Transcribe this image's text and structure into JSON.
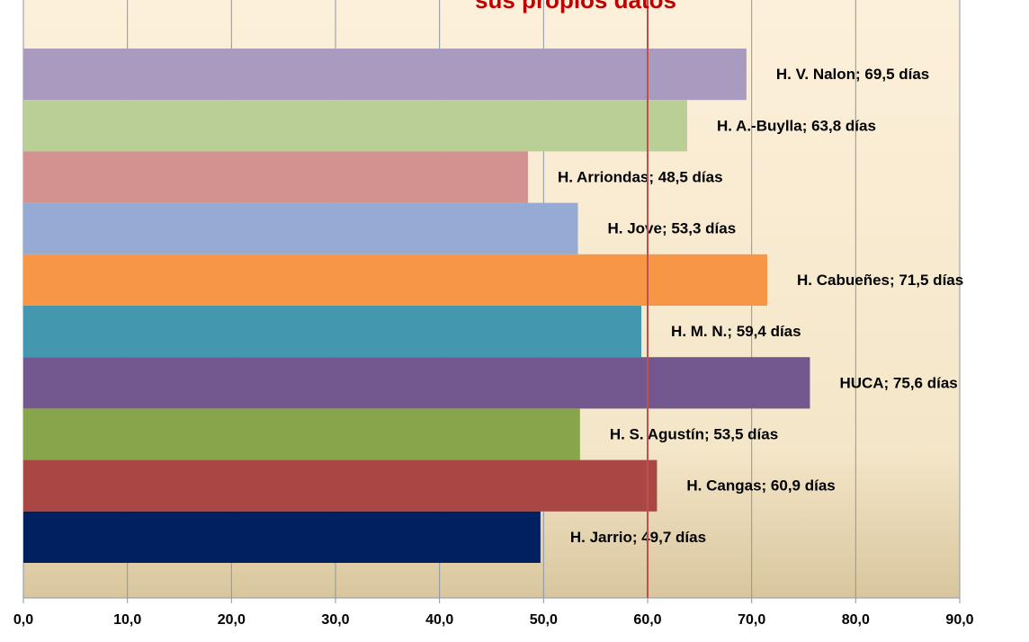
{
  "chart_data": {
    "type": "bar",
    "orientation": "horizontal",
    "title": "sus propios datos",
    "title_color": "#c00000",
    "categories": [
      "H. V. Nalon",
      "H. A.-Buylla",
      "H. Arriondas",
      "H. Jove",
      "H. Cabueñes",
      "H. M. N.",
      "HUCA",
      "H. S. Agustín",
      "H. Cangas",
      "H. Jarrio"
    ],
    "values": [
      69.5,
      63.8,
      48.5,
      53.3,
      71.5,
      59.4,
      75.6,
      53.5,
      60.9,
      49.7
    ],
    "value_labels": [
      "H. V. Nalon; 69,5 días",
      "H. A.-Buylla; 63,8 días",
      "H. Arriondas; 48,5 días",
      "H. Jove; 53,3 días",
      "H. Cabueñes; 71,5 días",
      "H. M. N.; 59,4 días",
      "HUCA; 75,6 días",
      "H. S. Agustín; 53,5 días",
      "H. Cangas; 60,9 días",
      "H. Jarrio; 49,7 días"
    ],
    "colors": [
      "#a99bbf",
      "#b9cf95",
      "#d3918f",
      "#95abd3",
      "#f79646",
      "#4398b0",
      "#72588e",
      "#88a54c",
      "#a84744",
      "#002060"
    ],
    "xlim": [
      0,
      90
    ],
    "xticks": [
      {
        "value": 0,
        "label": "0,0"
      },
      {
        "value": 10,
        "label": "10,0"
      },
      {
        "value": 20,
        "label": "20,0"
      },
      {
        "value": 30,
        "label": "30,0"
      },
      {
        "value": 40,
        "label": "40,0"
      },
      {
        "value": 50,
        "label": "50,0"
      },
      {
        "value": 60,
        "label": "60,0"
      },
      {
        "value": 70,
        "label": "70,0"
      },
      {
        "value": 80,
        "label": "80,0"
      },
      {
        "value": 90,
        "label": "90,0"
      }
    ],
    "grid": true,
    "reference_line": {
      "value": 60,
      "color": "#c0504d"
    }
  }
}
